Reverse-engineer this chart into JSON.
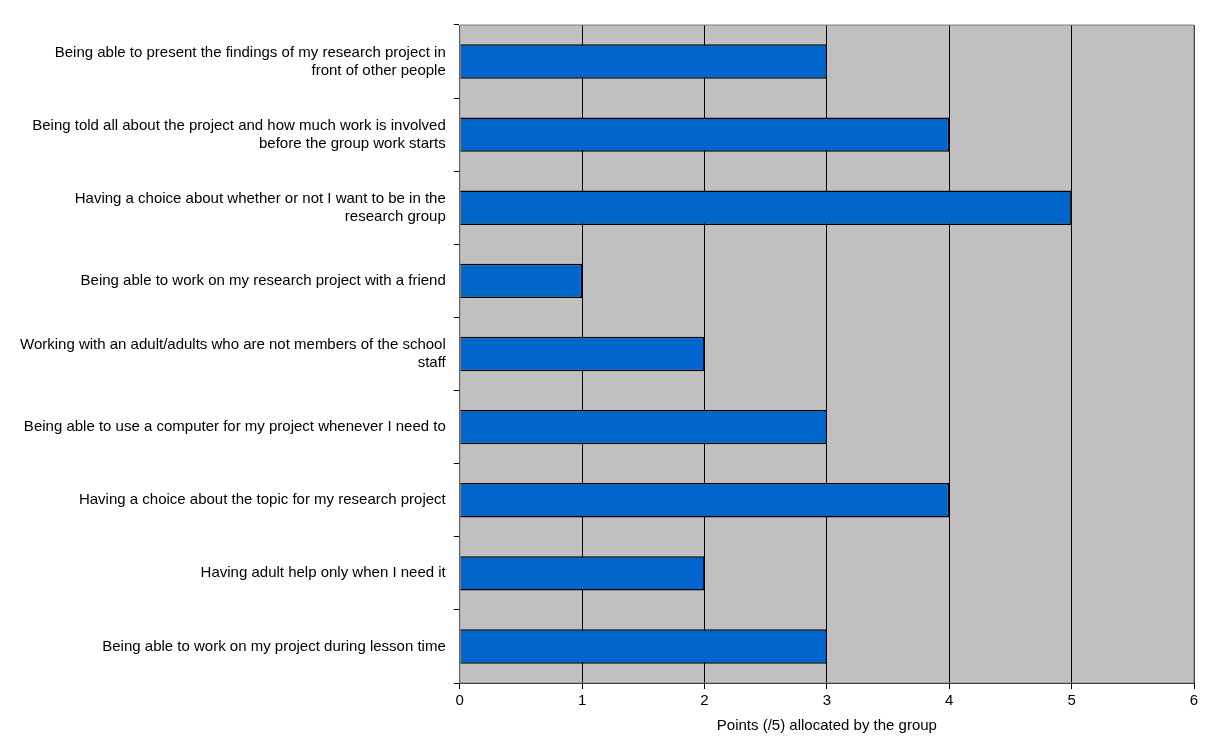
{
  "chart_data": {
    "type": "bar",
    "orientation": "horizontal",
    "xlabel": "Points (/5) allocated by the group",
    "categories": [
      "Being able to present the findings of my research project in front of other people",
      "Being told all about the project and how much work is involved before the group work starts",
      "Having a choice about whether or not I want to be in the research group",
      "Being able to work on my research project with a friend",
      "Working with an adult/adults who are not members of the school staff",
      "Being able to use a computer for my project whenever I need to",
      "Having a choice about the topic for my research project",
      "Having adult help only when I need it",
      "Being able to work on my project during lesson time"
    ],
    "values": [
      3,
      4,
      5,
      1,
      2,
      3,
      4,
      2,
      3
    ],
    "color": "#0066cc",
    "xlim": [
      0,
      6
    ],
    "xticks": [
      0,
      1,
      2,
      3,
      4,
      5,
      6
    ],
    "grid": "x",
    "legend": false
  }
}
